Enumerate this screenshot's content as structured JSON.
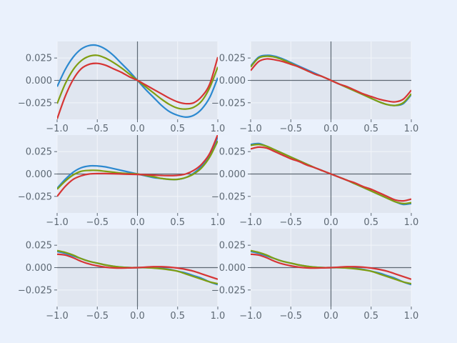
{
  "figure": {
    "background": "#eaf1fc",
    "axes_background": "#e0e6f0",
    "grid_color": "#f2f5fa",
    "axis_line_color": "#5d6873",
    "tick_label_color": "#5d6873"
  },
  "series_colors": [
    "#2c89d0",
    "#7f9e12",
    "#d63535"
  ],
  "chart_data": [
    {
      "type": "line",
      "panel": "row1-col1",
      "title": "",
      "xlabel": "",
      "ylabel": "",
      "xlim": [
        -1,
        1
      ],
      "ylim": [
        -0.0435,
        0.0435
      ],
      "x_ticks": [
        -1.0,
        -0.5,
        0.0,
        0.5,
        1.0
      ],
      "x_tick_labels": [
        "−1.0",
        "−0.5",
        "0.0",
        "0.5",
        "1.0"
      ],
      "y_ticks": [
        0.025,
        0.0,
        -0.025
      ],
      "y_tick_labels": [
        "0.025",
        "0.000",
        "−0.025"
      ],
      "grid": true,
      "x": [
        -1.0,
        -0.9,
        -0.8,
        -0.7,
        -0.6,
        -0.5,
        -0.4,
        -0.3,
        -0.2,
        -0.1,
        0.0,
        0.1,
        0.2,
        0.3,
        0.4,
        0.5,
        0.6,
        0.7,
        0.8,
        0.9,
        1.0
      ],
      "series": [
        {
          "values": [
            -0.007,
            0.012,
            0.026,
            0.035,
            0.039,
            0.039,
            0.035,
            0.028,
            0.019,
            0.01,
            0.0,
            -0.01,
            -0.019,
            -0.028,
            -0.035,
            -0.039,
            -0.041,
            -0.039,
            -0.032,
            -0.019,
            0.003
          ]
        },
        {
          "values": [
            -0.026,
            -0.004,
            0.012,
            0.022,
            0.027,
            0.028,
            0.025,
            0.02,
            0.014,
            0.007,
            0.0,
            -0.007,
            -0.014,
            -0.021,
            -0.027,
            -0.031,
            -0.032,
            -0.03,
            -0.023,
            -0.008,
            0.015
          ]
        },
        {
          "values": [
            -0.043,
            -0.018,
            0.001,
            0.013,
            0.018,
            0.019,
            0.017,
            0.013,
            0.009,
            0.004,
            0.0,
            -0.005,
            -0.01,
            -0.015,
            -0.02,
            -0.024,
            -0.026,
            -0.025,
            -0.018,
            -0.004,
            0.026
          ]
        }
      ]
    },
    {
      "type": "line",
      "panel": "row1-col2",
      "title": "",
      "xlabel": "",
      "ylabel": "",
      "xlim": [
        -1,
        1
      ],
      "ylim": [
        -0.0435,
        0.0435
      ],
      "x_ticks": [
        -1.0,
        -0.5,
        0.0,
        0.5,
        1.0
      ],
      "x_tick_labels": [
        "−1.0",
        "−0.5",
        "0.0",
        "0.5",
        "1.0"
      ],
      "y_ticks": [
        0.025,
        0.0,
        -0.025
      ],
      "y_tick_labels": [
        "0.025",
        "0.000",
        "−0.025"
      ],
      "grid": true,
      "x": [
        -1.0,
        -0.9,
        -0.8,
        -0.7,
        -0.6,
        -0.5,
        -0.4,
        -0.3,
        -0.2,
        -0.1,
        0.0,
        0.1,
        0.2,
        0.3,
        0.4,
        0.5,
        0.6,
        0.7,
        0.8,
        0.9,
        1.0
      ],
      "series": [
        {
          "values": [
            0.016,
            0.026,
            0.028,
            0.027,
            0.024,
            0.02,
            0.016,
            0.012,
            0.008,
            0.004,
            0.0,
            -0.004,
            -0.008,
            -0.012,
            -0.016,
            -0.02,
            -0.024,
            -0.027,
            -0.028,
            -0.026,
            -0.016
          ]
        },
        {
          "values": [
            0.015,
            0.025,
            0.027,
            0.026,
            0.023,
            0.019,
            0.015,
            0.011,
            0.007,
            0.004,
            0.0,
            -0.004,
            -0.008,
            -0.012,
            -0.016,
            -0.02,
            -0.024,
            -0.027,
            -0.028,
            -0.025,
            -0.015
          ]
        },
        {
          "values": [
            0.011,
            0.021,
            0.024,
            0.023,
            0.021,
            0.018,
            0.015,
            0.011,
            0.007,
            0.004,
            0.0,
            -0.004,
            -0.007,
            -0.011,
            -0.015,
            -0.018,
            -0.021,
            -0.023,
            -0.024,
            -0.021,
            -0.011
          ]
        }
      ]
    },
    {
      "type": "line",
      "panel": "row2-col1",
      "title": "",
      "xlabel": "",
      "ylabel": "",
      "xlim": [
        -1,
        1
      ],
      "ylim": [
        -0.0435,
        0.0435
      ],
      "x_ticks": [
        -1.0,
        -0.5,
        0.0,
        0.5,
        1.0
      ],
      "x_tick_labels": [
        "−1.0",
        "−0.5",
        "0.0",
        "0.5",
        "1.0"
      ],
      "y_ticks": [
        0.025,
        0.0,
        -0.025
      ],
      "y_tick_labels": [
        "0.025",
        "0.000",
        "−0.025"
      ],
      "grid": true,
      "x": [
        -1.0,
        -0.9,
        -0.8,
        -0.7,
        -0.6,
        -0.5,
        -0.4,
        -0.3,
        -0.2,
        -0.1,
        0.0,
        0.1,
        0.2,
        0.3,
        0.4,
        0.5,
        0.6,
        0.7,
        0.8,
        0.9,
        1.0
      ],
      "series": [
        {
          "values": [
            -0.016,
            -0.006,
            0.002,
            0.007,
            0.009,
            0.009,
            0.008,
            0.006,
            0.004,
            0.002,
            0.0,
            -0.002,
            -0.004,
            -0.005,
            -0.006,
            -0.006,
            -0.004,
            0.001,
            0.009,
            0.022,
            0.041
          ]
        },
        {
          "values": [
            -0.017,
            -0.008,
            -0.001,
            0.003,
            0.004,
            0.004,
            0.003,
            0.002,
            0.001,
            0.0005,
            0.0,
            -0.0015,
            -0.003,
            -0.005,
            -0.006,
            -0.006,
            -0.004,
            0.0,
            0.007,
            0.019,
            0.037
          ]
        },
        {
          "values": [
            -0.025,
            -0.014,
            -0.006,
            -0.002,
            0.0,
            0.0005,
            0.0005,
            0.0003,
            0.0,
            -0.0003,
            -0.0005,
            -0.0008,
            -0.0012,
            -0.0016,
            -0.0018,
            -0.0015,
            0.0,
            0.004,
            0.011,
            0.023,
            0.044
          ]
        }
      ]
    },
    {
      "type": "line",
      "panel": "row2-col2",
      "title": "",
      "xlabel": "",
      "ylabel": "",
      "xlim": [
        -1,
        1
      ],
      "ylim": [
        -0.0435,
        0.0435
      ],
      "x_ticks": [
        -1.0,
        -0.5,
        0.0,
        0.5,
        1.0
      ],
      "x_tick_labels": [
        "−1.0",
        "−0.5",
        "0.0",
        "0.5",
        "1.0"
      ],
      "y_ticks": [
        0.025,
        0.0,
        -0.025
      ],
      "y_tick_labels": [
        "0.025",
        "0.000",
        "−0.025"
      ],
      "grid": true,
      "x": [
        -1.0,
        -0.9,
        -0.8,
        -0.7,
        -0.6,
        -0.5,
        -0.4,
        -0.3,
        -0.2,
        -0.1,
        0.0,
        0.1,
        0.2,
        0.3,
        0.4,
        0.5,
        0.6,
        0.7,
        0.8,
        0.9,
        1.0
      ],
      "series": [
        {
          "values": [
            0.033,
            0.034,
            0.031,
            0.027,
            0.023,
            0.019,
            0.015,
            0.011,
            0.007,
            0.0035,
            0.0,
            -0.0035,
            -0.007,
            -0.011,
            -0.015,
            -0.019,
            -0.023,
            -0.027,
            -0.031,
            -0.034,
            -0.033
          ]
        },
        {
          "values": [
            0.032,
            0.033,
            0.031,
            0.027,
            0.023,
            0.019,
            0.015,
            0.011,
            0.007,
            0.0035,
            0.0,
            -0.0035,
            -0.007,
            -0.011,
            -0.015,
            -0.019,
            -0.023,
            -0.027,
            -0.031,
            -0.033,
            -0.032
          ]
        },
        {
          "values": [
            0.028,
            0.03,
            0.029,
            0.025,
            0.021,
            0.017,
            0.014,
            0.01,
            0.007,
            0.0035,
            0.0,
            -0.0035,
            -0.007,
            -0.01,
            -0.014,
            -0.017,
            -0.021,
            -0.025,
            -0.029,
            -0.03,
            -0.028
          ]
        }
      ]
    },
    {
      "type": "line",
      "panel": "row3-col1",
      "title": "",
      "xlabel": "",
      "ylabel": "",
      "xlim": [
        -1,
        1
      ],
      "ylim": [
        -0.0435,
        0.0435
      ],
      "x_ticks": [
        -1.0,
        -0.5,
        0.0,
        0.5,
        1.0
      ],
      "x_tick_labels": [
        "−1.0",
        "−0.5",
        "0.0",
        "0.5",
        "1.0"
      ],
      "y_ticks": [
        0.025,
        0.0,
        -0.025
      ],
      "y_tick_labels": [
        "0.025",
        "0.000",
        "−0.025"
      ],
      "grid": true,
      "x": [
        -1.0,
        -0.9,
        -0.8,
        -0.7,
        -0.6,
        -0.5,
        -0.4,
        -0.3,
        -0.2,
        -0.1,
        0.0,
        0.1,
        0.2,
        0.3,
        0.4,
        0.5,
        0.6,
        0.7,
        0.8,
        0.9,
        1.0
      ],
      "series": [
        {
          "values": [
            0.018,
            0.016,
            0.013,
            0.01,
            0.007,
            0.005,
            0.003,
            0.0015,
            0.0005,
            0.0,
            0.0,
            0.0,
            -0.0003,
            -0.001,
            -0.002,
            -0.004,
            -0.006,
            -0.009,
            -0.012,
            -0.016,
            -0.019
          ]
        },
        {
          "values": [
            0.019,
            0.017,
            0.014,
            0.01,
            0.007,
            0.005,
            0.003,
            0.0015,
            0.0005,
            0.0,
            0.0,
            0.0,
            -0.0005,
            -0.0013,
            -0.0025,
            -0.004,
            -0.007,
            -0.01,
            -0.013,
            -0.016,
            -0.018
          ]
        },
        {
          "values": [
            0.015,
            0.014,
            0.011,
            0.007,
            0.004,
            0.002,
            0.0005,
            -0.0003,
            -0.0005,
            -0.0003,
            0.0,
            0.0005,
            0.001,
            0.001,
            0.0005,
            -0.0005,
            -0.002,
            -0.004,
            -0.007,
            -0.01,
            -0.013
          ]
        }
      ]
    },
    {
      "type": "line",
      "panel": "row3-col2",
      "title": "",
      "xlabel": "",
      "ylabel": "",
      "xlim": [
        -1,
        1
      ],
      "ylim": [
        -0.0435,
        0.0435
      ],
      "x_ticks": [
        -1.0,
        -0.5,
        0.0,
        0.5,
        1.0
      ],
      "x_tick_labels": [
        "−1.0",
        "−0.5",
        "0.0",
        "0.5",
        "1.0"
      ],
      "y_ticks": [
        0.025,
        0.0,
        -0.025
      ],
      "y_tick_labels": [
        "0.025",
        "0.000",
        "−0.025"
      ],
      "grid": true,
      "x": [
        -1.0,
        -0.9,
        -0.8,
        -0.7,
        -0.6,
        -0.5,
        -0.4,
        -0.3,
        -0.2,
        -0.1,
        0.0,
        0.1,
        0.2,
        0.3,
        0.4,
        0.5,
        0.6,
        0.7,
        0.8,
        0.9,
        1.0
      ],
      "series": [
        {
          "values": [
            0.018,
            0.016,
            0.013,
            0.01,
            0.007,
            0.005,
            0.003,
            0.0015,
            0.0005,
            0.0,
            0.0,
            0.0,
            -0.0003,
            -0.001,
            -0.002,
            -0.004,
            -0.006,
            -0.009,
            -0.012,
            -0.016,
            -0.019
          ]
        },
        {
          "values": [
            0.019,
            0.017,
            0.014,
            0.01,
            0.007,
            0.005,
            0.003,
            0.0015,
            0.0005,
            0.0,
            0.0,
            0.0,
            -0.0005,
            -0.0013,
            -0.0025,
            -0.004,
            -0.007,
            -0.01,
            -0.013,
            -0.016,
            -0.018
          ]
        },
        {
          "values": [
            0.015,
            0.014,
            0.011,
            0.007,
            0.004,
            0.002,
            0.0005,
            -0.0003,
            -0.0005,
            -0.0003,
            0.0,
            0.0005,
            0.001,
            0.001,
            0.0005,
            -0.0005,
            -0.002,
            -0.004,
            -0.007,
            -0.01,
            -0.013
          ]
        }
      ]
    }
  ]
}
